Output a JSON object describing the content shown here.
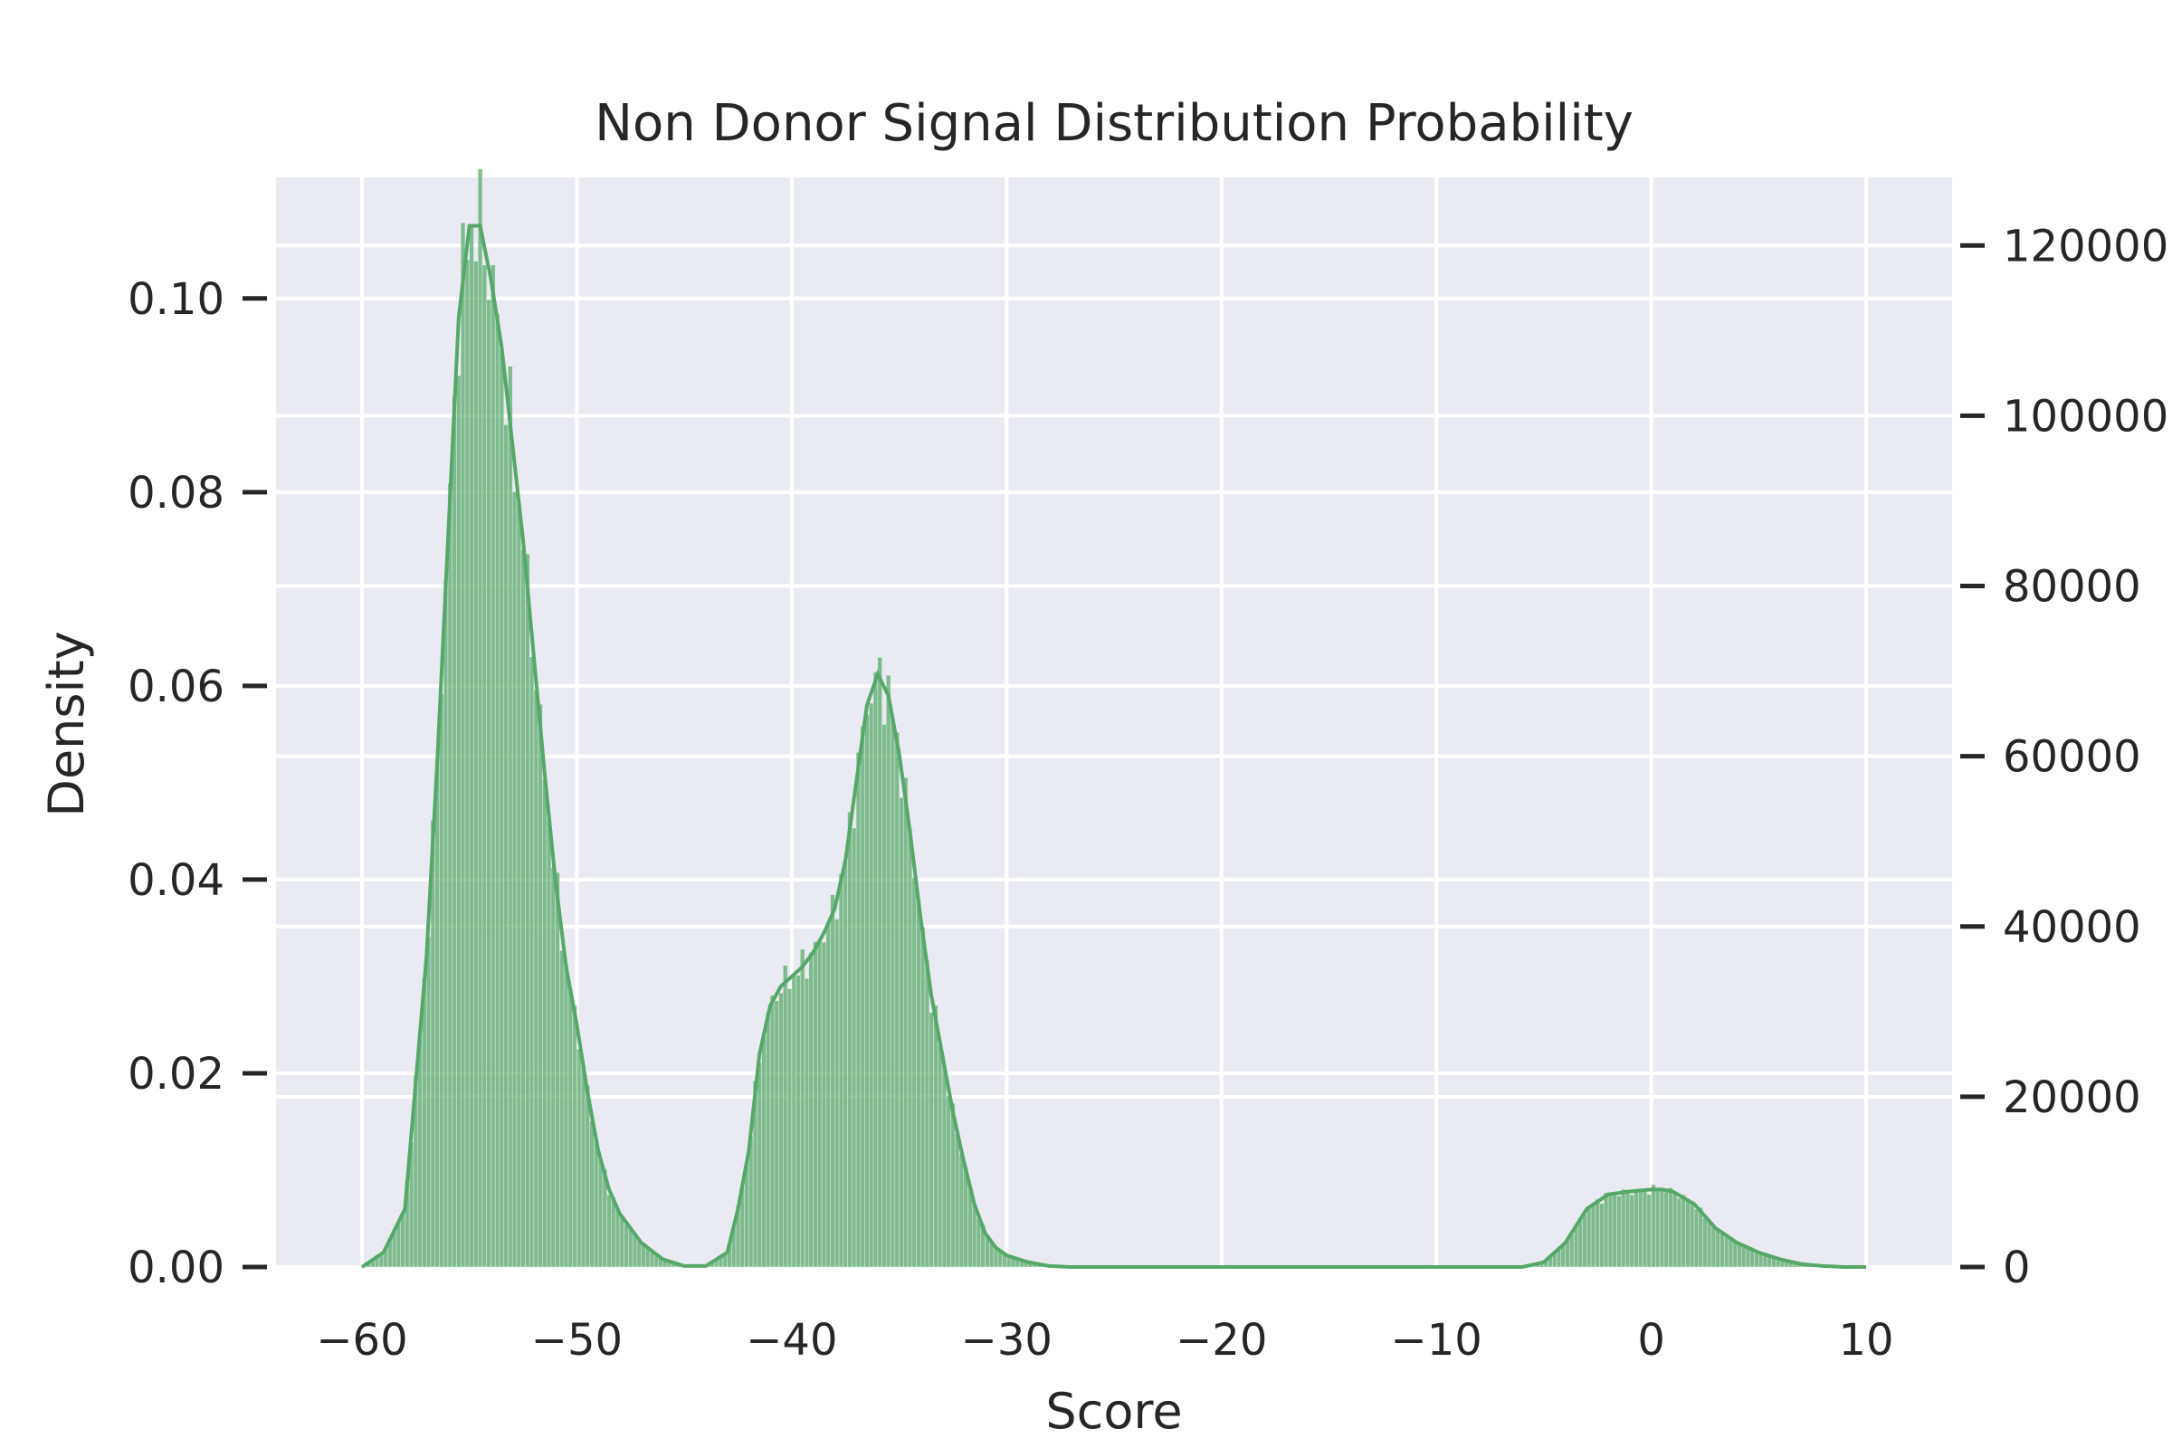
{
  "chart_data": {
    "type": "histogram",
    "title": "Non Donor Signal Distribution Probability",
    "xlabel": "Score",
    "ylabel": "Density",
    "y2label": "",
    "xlim": [
      -64,
      14
    ],
    "ylim": [
      0,
      0.1125
    ],
    "y2lim": [
      0,
      128000
    ],
    "x_ticks": [
      -60,
      -50,
      -40,
      -30,
      -20,
      -10,
      0,
      10
    ],
    "x_tick_labels": [
      "−60",
      "−50",
      "−40",
      "−30",
      "−20",
      "−10",
      "0",
      "10"
    ],
    "y_ticks": [
      0.0,
      0.02,
      0.04,
      0.06,
      0.08,
      0.1
    ],
    "y_tick_labels": [
      "0.00",
      "0.02",
      "0.04",
      "0.06",
      "0.08",
      "0.10"
    ],
    "y2_ticks": [
      0,
      20000,
      40000,
      60000,
      80000,
      100000,
      120000
    ],
    "y2_tick_labels": [
      "0",
      "20000",
      "40000",
      "60000",
      "80000",
      "100000",
      "120000"
    ],
    "grid": true,
    "colors": {
      "background": "#eaeaf2",
      "grid": "#ffffff",
      "bar": "#55a868",
      "kde": "#55a868",
      "text": "#262626"
    },
    "kde": {
      "x": [
        -60,
        -59,
        -58,
        -57,
        -56.5,
        -56,
        -55.5,
        -55,
        -54.5,
        -54,
        -53.5,
        -53,
        -52.5,
        -52,
        -51.5,
        -51,
        -50.5,
        -50,
        -49.5,
        -49,
        -48.5,
        -48,
        -47,
        -46,
        -45,
        -44,
        -43,
        -42.5,
        -42,
        -41.5,
        -41,
        -40.5,
        -40,
        -39.5,
        -39,
        -38.5,
        -38,
        -37.5,
        -37,
        -36.5,
        -36,
        -35.5,
        -35,
        -34.5,
        -34,
        -33.5,
        -33,
        -32.5,
        -32,
        -31.5,
        -31,
        -30.5,
        -30,
        -29,
        -28,
        -27,
        -26,
        -20,
        -10,
        -6,
        -5,
        -4,
        -3,
        -2,
        -1,
        0,
        0.5,
        1,
        2,
        3,
        4,
        5,
        6,
        7,
        8,
        9,
        10
      ],
      "y": [
        0.0,
        0.0015,
        0.006,
        0.032,
        0.052,
        0.075,
        0.098,
        0.1075,
        0.1075,
        0.102,
        0.095,
        0.085,
        0.075,
        0.063,
        0.051,
        0.04,
        0.031,
        0.025,
        0.018,
        0.012,
        0.008,
        0.0055,
        0.0025,
        0.0008,
        0.0001,
        0.0001,
        0.0015,
        0.006,
        0.012,
        0.022,
        0.027,
        0.029,
        0.03,
        0.031,
        0.0325,
        0.0345,
        0.037,
        0.042,
        0.05,
        0.058,
        0.0612,
        0.059,
        0.053,
        0.045,
        0.036,
        0.028,
        0.022,
        0.016,
        0.011,
        0.0065,
        0.0035,
        0.002,
        0.0012,
        0.0005,
        0.0001,
        0.0,
        0.0,
        0.0,
        0.0,
        0.0,
        0.0005,
        0.0025,
        0.006,
        0.0075,
        0.0078,
        0.008,
        0.008,
        0.0078,
        0.0065,
        0.004,
        0.0025,
        0.0015,
        0.0008,
        0.0003,
        0.0001,
        0.0,
        0.0
      ]
    }
  }
}
